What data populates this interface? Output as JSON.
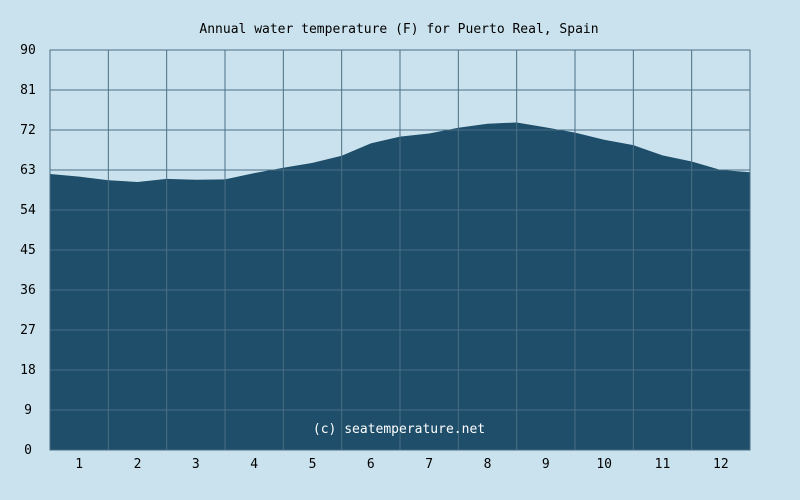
{
  "chart_data": {
    "type": "area",
    "title": "Annual water temperature (F) for Puerto Real, Spain",
    "xlabel": "",
    "ylabel": "",
    "x_ticks": [
      "1",
      "2",
      "3",
      "4",
      "5",
      "6",
      "7",
      "8",
      "9",
      "10",
      "11",
      "12"
    ],
    "y_ticks": [
      "0",
      "9",
      "18",
      "27",
      "36",
      "45",
      "54",
      "63",
      "72",
      "81",
      "90"
    ],
    "xlim": [
      0.5,
      12.5
    ],
    "ylim": [
      0,
      90
    ],
    "grid": true,
    "legend": "none",
    "series": [
      {
        "x": [
          0.5,
          1.0,
          1.5,
          2.0,
          2.5,
          3.0,
          3.5,
          4.0,
          4.5,
          5.0,
          5.5,
          6.0,
          6.5,
          7.0,
          7.5,
          8.0,
          8.5,
          9.0,
          9.5,
          10.0,
          10.5,
          11.0,
          11.5,
          12.0,
          12.5
        ],
        "values": [
          62.1,
          61.5,
          60.7,
          60.3,
          61.0,
          60.8,
          60.9,
          62.3,
          63.5,
          64.6,
          66.2,
          69.0,
          70.5,
          71.2,
          72.5,
          73.4,
          73.7,
          72.6,
          71.4,
          69.8,
          68.6,
          66.3,
          64.9,
          63.0,
          62.5
        ]
      }
    ],
    "watermark": "(c) seatemperature.net",
    "colors": {
      "background": "#cae2ee",
      "area_fill": "#1e4e69",
      "grid": "#4a6f86",
      "frame": "#4a6f86"
    }
  }
}
